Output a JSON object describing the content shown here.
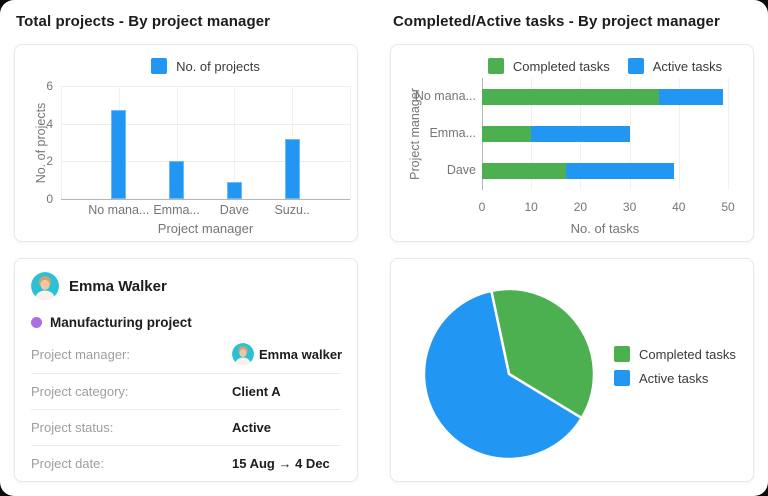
{
  "titles": {
    "total_projects": "Total projects - By project manager",
    "completed_active": "Completed/Active tasks - By project manager"
  },
  "colors": {
    "blue": "#2196F3",
    "green": "#4CAF50",
    "purple": "#AB6FE3",
    "avatar_bg": "#2BC0D4",
    "axis_text": "#757575"
  },
  "chart_data": [
    {
      "type": "bar",
      "title": "Total projects - By project manager",
      "legend": [
        "No. of projects"
      ],
      "bar_color": "#2196F3",
      "categories": [
        "No mana...",
        "Emma...",
        "Dave",
        "Suzu.."
      ],
      "values": [
        4.7,
        2,
        0.9,
        3.2
      ],
      "xlabel": "Project manager",
      "ylabel": "No. of projects",
      "yticks": [
        0,
        2,
        4,
        6
      ],
      "ylim": [
        0,
        6
      ],
      "grid": true,
      "legend_position": "top"
    },
    {
      "type": "bar",
      "orientation": "horizontal",
      "stacked": true,
      "title": "Completed/Active tasks - By project manager",
      "categories": [
        "No mana...",
        "Emma...",
        "Dave"
      ],
      "series": [
        {
          "name": "Completed tasks",
          "color": "#4CAF50",
          "values": [
            36,
            10,
            17
          ]
        },
        {
          "name": "Active tasks",
          "color": "#2196F3",
          "values": [
            13,
            20,
            22
          ]
        }
      ],
      "xlabel": "No. of tasks",
      "ylabel": "Project manager",
      "xticks": [
        0,
        10,
        20,
        30,
        40,
        50
      ],
      "xlim": [
        0,
        50
      ],
      "grid": true,
      "legend_position": "top"
    },
    {
      "type": "pie",
      "slices": [
        {
          "label": "Completed tasks",
          "color": "#4CAF50",
          "percent": 37
        },
        {
          "label": "Active tasks",
          "color": "#2196F3",
          "percent": 63
        }
      ],
      "start_angle_deg": -12,
      "legend_position": "right"
    }
  ],
  "profile_card": {
    "name": "Emma Walker",
    "project_label": "Manufacturing project",
    "project_dot_color": "#AB6FE3",
    "rows": [
      {
        "label": "Project manager:",
        "value": "Emma walker",
        "has_avatar": true
      },
      {
        "label": "Project category:",
        "value": "Client A"
      },
      {
        "label": "Project status:",
        "value": "Active"
      },
      {
        "label": "Project date:",
        "value": "15 Aug  →  4 Dec"
      }
    ]
  }
}
